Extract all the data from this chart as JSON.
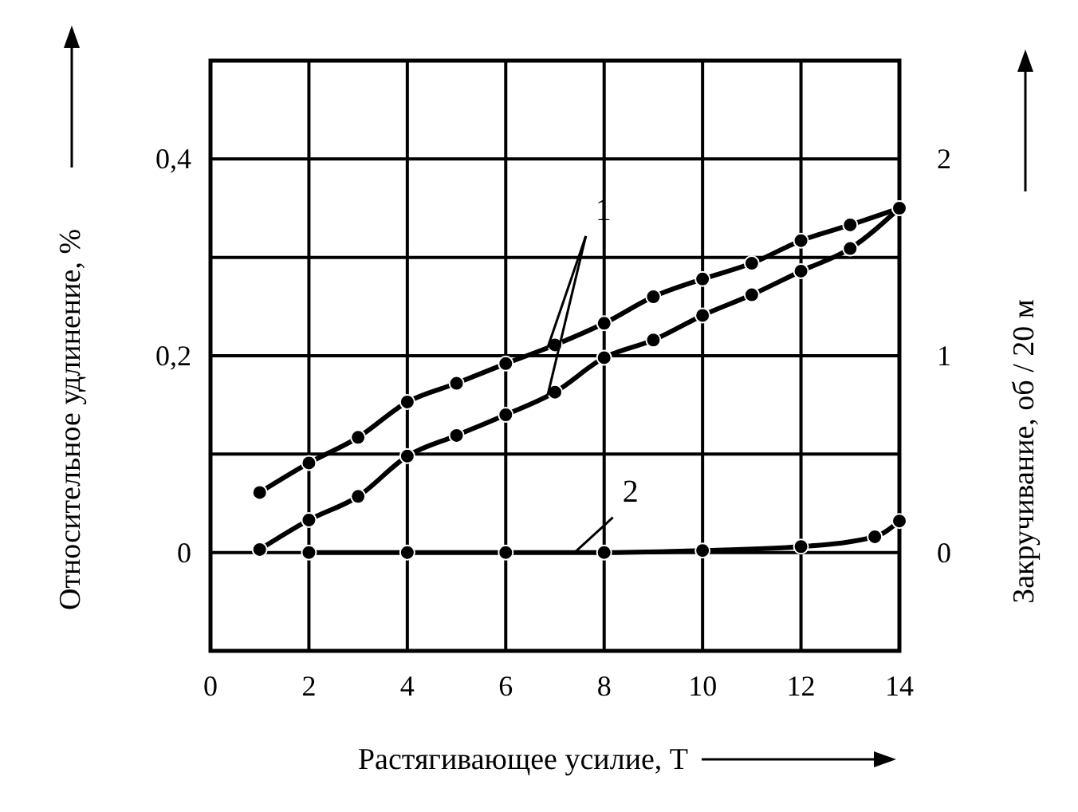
{
  "chart_data": {
    "type": "line",
    "xlabel": "Растягивающее усилие, Т",
    "ylabel": "Относительное удлинение, %",
    "y2label": "Закручивание, об / 20 м",
    "xlim": [
      0,
      14
    ],
    "xticks": [
      0,
      2,
      4,
      6,
      8,
      10,
      12,
      14
    ],
    "ylim": [
      -0.1,
      0.5
    ],
    "yticks": [
      0,
      {
        "value": 0.1,
        "label": null
      },
      {
        "value": 0.2,
        "label": "0,2"
      },
      {
        "value": 0.3,
        "label": null
      },
      {
        "value": 0.4,
        "label": "0,4"
      }
    ],
    "y2lim": [
      -0.5,
      2.5
    ],
    "y2ticks": [
      0,
      1,
      2
    ],
    "grid": true,
    "marker": "circle",
    "line_style": "solid",
    "series": [
      {
        "name": "1",
        "color": "#000000",
        "x": [
          1,
          2,
          3,
          4,
          5,
          6,
          7,
          8,
          9,
          10,
          11,
          12,
          13,
          14
        ],
        "values": [
          0.061,
          0.091,
          0.117,
          0.153,
          0.172,
          0.192,
          0.211,
          0.233,
          0.26,
          0.278,
          0.294,
          0.317,
          0.333,
          0.35
        ]
      },
      {
        "color": "#000000",
        "x": [
          1,
          2,
          3,
          4,
          5,
          6,
          7,
          8,
          9,
          10,
          11,
          12,
          13,
          14
        ],
        "values": [
          0.003,
          0.033,
          0.057,
          0.098,
          0.119,
          0.14,
          0.163,
          0.198,
          0.216,
          0.241,
          0.262,
          0.286,
          0.309,
          0.35
        ]
      },
      {
        "name": "2",
        "color": "#000000",
        "axis": "y2",
        "x": [
          2,
          4,
          6,
          8,
          10,
          12,
          13.5,
          14
        ],
        "values": [
          0,
          0,
          0,
          0,
          0.01,
          0.03,
          0.08,
          0.16
        ]
      }
    ]
  }
}
